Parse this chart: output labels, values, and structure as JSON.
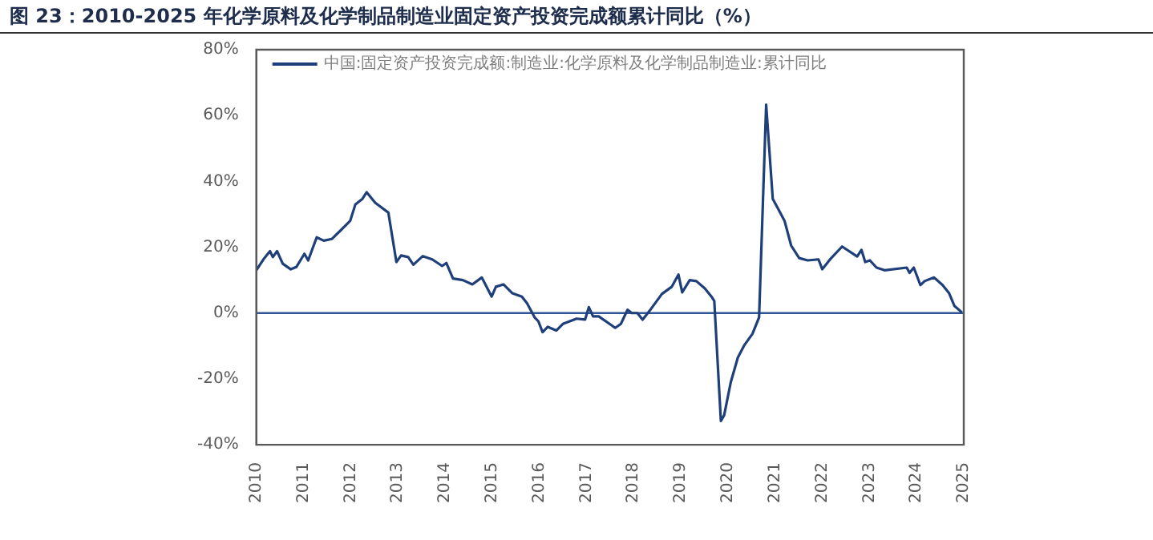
{
  "chart_data": {
    "type": "line",
    "title": "图 23：2010-2025 年化学原料及化学制品制造业固定资产投资完成额累计同比（%）",
    "legend": "top left",
    "grid": false,
    "marker": "none",
    "line_style": "solid",
    "xlim": [
      2010,
      2025
    ],
    "xticks": [
      2010,
      2011,
      2012,
      2013,
      2014,
      2015,
      2016,
      2017,
      2018,
      2019,
      2020,
      2021,
      2022,
      2023,
      2024,
      2025
    ],
    "ylim": [
      -40,
      80
    ],
    "yticks": [
      {
        "value": -40,
        "label": "-40%"
      },
      {
        "value": -20,
        "label": "-20%"
      },
      {
        "value": 0,
        "label": "0%"
      },
      {
        "value": 20,
        "label": "20%"
      },
      {
        "value": 40,
        "label": "40%"
      },
      {
        "value": 60,
        "label": "60%"
      },
      {
        "value": 80,
        "label": "80%"
      }
    ],
    "ref_lines": [
      {
        "axis": "y",
        "value": 0,
        "color": "#2f5597"
      }
    ],
    "series": [
      {
        "name": "中国:固定资产投资完成额:制造业:化学原料及化学制品制造业:累计同比",
        "color": "#1f3f7a",
        "x": [
          2010.0,
          2010.15,
          2010.29,
          2010.35,
          2010.44,
          2010.56,
          2010.73,
          2010.85,
          2011.02,
          2011.1,
          2011.28,
          2011.43,
          2011.6,
          2011.78,
          2011.99,
          2012.1,
          2012.25,
          2012.34,
          2012.52,
          2012.8,
          2012.97,
          2013.07,
          2013.22,
          2013.33,
          2013.53,
          2013.73,
          2013.94,
          2014.03,
          2014.17,
          2014.38,
          2014.58,
          2014.78,
          2014.99,
          2015.08,
          2015.24,
          2015.43,
          2015.63,
          2015.74,
          2015.9,
          2015.98,
          2016.07,
          2016.18,
          2016.36,
          2016.5,
          2016.79,
          2016.97,
          2017.05,
          2017.14,
          2017.26,
          2017.61,
          2017.73,
          2017.87,
          2017.96,
          2018.08,
          2018.19,
          2018.37,
          2018.6,
          2018.81,
          2018.95,
          2019.03,
          2019.19,
          2019.33,
          2019.51,
          2019.65,
          2019.71,
          2019.85,
          2019.92,
          2020.06,
          2020.21,
          2020.35,
          2020.52,
          2020.66,
          2020.81,
          2020.95,
          2021.07,
          2021.2,
          2021.34,
          2021.51,
          2021.69,
          2021.92,
          2022.0,
          2022.19,
          2022.42,
          2022.74,
          2022.83,
          2022.91,
          2023.01,
          2023.15,
          2023.32,
          2023.79,
          2023.85,
          2023.94,
          2024.08,
          2024.17,
          2024.37,
          2024.55,
          2024.69,
          2024.8,
          2024.96
        ],
        "values": [
          13,
          16.3,
          18.8,
          17,
          18.8,
          15,
          13.3,
          14,
          18,
          16,
          23,
          22,
          22.5,
          25,
          28,
          33,
          34.7,
          36.7,
          33.5,
          30.5,
          15.5,
          17.5,
          17,
          14.7,
          17.3,
          16.3,
          14.3,
          15.2,
          10.5,
          10,
          8.7,
          10.8,
          5,
          8,
          8.7,
          6,
          5,
          3,
          -1.3,
          -2.5,
          -5.8,
          -4.2,
          -5.3,
          -3.3,
          -1.7,
          -2,
          1.8,
          -1,
          -1,
          -4.5,
          -3.3,
          1,
          0,
          0,
          -2,
          1.3,
          5.8,
          8,
          11.7,
          6.3,
          10,
          9.7,
          7.5,
          5,
          3.7,
          -32.8,
          -31,
          -21,
          -13.5,
          -9.7,
          -6.3,
          -1.3,
          63.3,
          34.7,
          31.5,
          28,
          20.5,
          16.7,
          16,
          16.3,
          13.3,
          16.7,
          20.2,
          17.2,
          19.2,
          15.5,
          16,
          13.8,
          13,
          13.8,
          12.2,
          13.8,
          8.5,
          9.7,
          10.8,
          8.5,
          6,
          2.2,
          0.2
        ]
      }
    ]
  }
}
